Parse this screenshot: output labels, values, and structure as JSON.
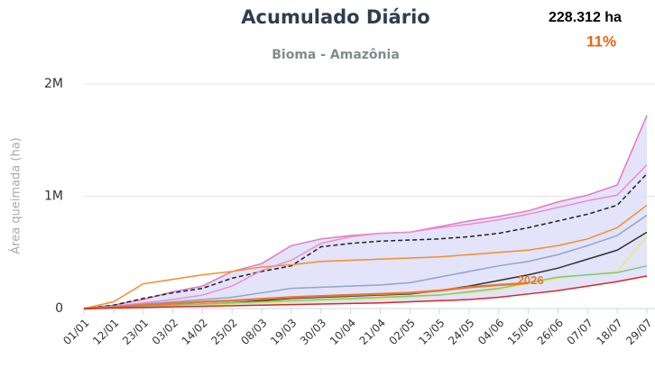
{
  "chart_data": {
    "type": "line",
    "title": "Acumulado Diário",
    "subtitle": "Bioma - Amazônia",
    "y_label": "Área queimada (ha)",
    "total_label": "228.312 ha",
    "percent_label": "11%",
    "categories": [
      "01/01",
      "12/01",
      "23/01",
      "03/02",
      "14/02",
      "25/02",
      "08/03",
      "19/03",
      "30/03",
      "10/04",
      "21/04",
      "02/05",
      "13/05",
      "24/05",
      "04/06",
      "15/06",
      "26/06",
      "07/07",
      "18/07",
      "29/07"
    ],
    "ylim": [
      0,
      2000000
    ],
    "yticks": [
      {
        "value": 0,
        "label": "0"
      },
      {
        "value": 1000000,
        "label": "1M"
      },
      {
        "value": 2000000,
        "label": "2M"
      }
    ],
    "grid": true,
    "band_fill": "#dcdcf8",
    "series": [
      {
        "color": "#e377c2",
        "values": [
          0,
          30000,
          80000,
          150000,
          200000,
          330000,
          400000,
          560000,
          620000,
          650000,
          670000,
          680000,
          730000,
          780000,
          820000,
          870000,
          950000,
          1010000,
          1100000,
          1720000
        ]
      },
      {
        "color": "#222222",
        "dash": true,
        "values": [
          0,
          30000,
          90000,
          140000,
          180000,
          270000,
          330000,
          380000,
          550000,
          580000,
          600000,
          610000,
          620000,
          640000,
          670000,
          720000,
          780000,
          840000,
          920000,
          1200000
        ]
      },
      {
        "color": "#f28e2b",
        "values": [
          0,
          60000,
          220000,
          260000,
          300000,
          330000,
          370000,
          390000,
          420000,
          430000,
          440000,
          450000,
          460000,
          480000,
          500000,
          520000,
          560000,
          620000,
          720000,
          920000
        ]
      },
      {
        "color": "#f08bd0",
        "values": [
          0,
          20000,
          50000,
          80000,
          120000,
          200000,
          340000,
          430000,
          580000,
          640000,
          670000,
          680000,
          720000,
          750000,
          790000,
          840000,
          900000,
          960000,
          1010000,
          1280000
        ]
      },
      {
        "color": "#8fa6c8",
        "values": [
          0,
          20000,
          40000,
          60000,
          80000,
          100000,
          140000,
          180000,
          190000,
          200000,
          210000,
          230000,
          280000,
          330000,
          380000,
          420000,
          480000,
          560000,
          650000,
          830000
        ]
      },
      {
        "color": "#333333",
        "values": [
          0,
          10000,
          20000,
          30000,
          40000,
          50000,
          70000,
          90000,
          100000,
          110000,
          120000,
          130000,
          160000,
          200000,
          250000,
          300000,
          360000,
          440000,
          520000,
          680000
        ]
      },
      {
        "color": "#e8e86a",
        "values": [
          0,
          5000,
          10000,
          20000,
          30000,
          40000,
          50000,
          60000,
          70000,
          80000,
          90000,
          100000,
          120000,
          140000,
          170000,
          220000,
          270000,
          300000,
          330000,
          640000
        ]
      },
      {
        "color": "#7fc97f",
        "values": [
          0,
          10000,
          20000,
          30000,
          40000,
          50000,
          60000,
          70000,
          80000,
          90000,
          100000,
          110000,
          120000,
          150000,
          180000,
          230000,
          280000,
          300000,
          320000,
          380000
        ]
      },
      {
        "name": "2026",
        "color": "#e8772e",
        "values": [
          0,
          10000,
          30000,
          45000,
          60000,
          70000,
          85000,
          100000,
          110000,
          120000,
          130000,
          140000,
          160000,
          190000,
          210000,
          228312,
          null,
          null,
          null,
          null
        ]
      },
      {
        "color": "#d62728",
        "values": [
          0,
          5000,
          10000,
          15000,
          20000,
          25000,
          30000,
          35000,
          40000,
          45000,
          50000,
          60000,
          70000,
          80000,
          100000,
          130000,
          160000,
          200000,
          240000,
          290000
        ]
      }
    ]
  }
}
